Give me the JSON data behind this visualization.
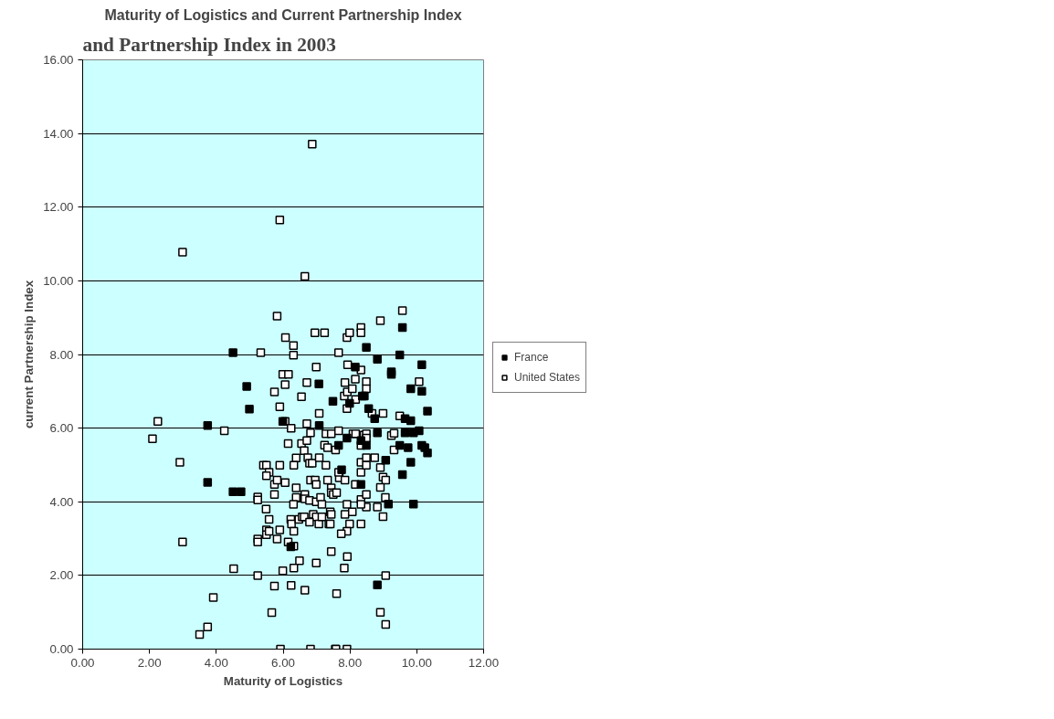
{
  "chart_data": {
    "type": "scatter",
    "title": "Maturity of Logistics and Current Partnership Index",
    "xlabel": "Maturity of Logistics",
    "ylabel": "current Partnership Index",
    "annotations": [
      "and Partnership Index in 2003"
    ],
    "xlim": [
      0,
      12
    ],
    "xticks": [
      {
        "value": 0,
        "label": "0.00"
      },
      {
        "value": 2,
        "label": "2.00"
      },
      {
        "value": 4,
        "label": "4.00"
      },
      {
        "value": 6,
        "label": "6.00"
      },
      {
        "value": 8,
        "label": "8.00"
      },
      {
        "value": 10,
        "label": "10.00"
      },
      {
        "value": 12,
        "label": "12.00"
      }
    ],
    "ylim": [
      0,
      16
    ],
    "yticks": [
      {
        "value": 0,
        "label": "0.00"
      },
      {
        "value": 2,
        "label": "2.00"
      },
      {
        "value": 4,
        "label": "4.00"
      },
      {
        "value": 6,
        "label": "6.00"
      },
      {
        "value": 8,
        "label": "8.00"
      },
      {
        "value": 10,
        "label": "10.00"
      },
      {
        "value": 12,
        "label": "12.00"
      },
      {
        "value": 14,
        "label": "14.00"
      },
      {
        "value": 16,
        "label": "16.00"
      }
    ],
    "grid": "y",
    "legend": "right",
    "marker": "square",
    "series": [
      {
        "name": "France",
        "color": "#000000",
        "x": [
          4.5,
          4.91,
          4.99,
          3.74,
          3.74,
          4.5,
          4.74,
          8.49,
          7.07,
          7.49,
          7.99,
          8.37,
          8.43,
          8.56,
          5.99,
          7.08,
          7.91,
          8.33,
          8.49,
          7.66,
          7.75,
          8.33,
          6.23,
          8.16,
          9.57,
          9.49,
          8.82,
          10.15,
          9.24,
          9.24,
          9.82,
          10.15,
          8.74,
          9.65,
          9.82,
          10.32,
          8.82,
          9.65,
          9.9,
          10.07,
          9.49,
          9.74,
          10.15,
          10.24,
          10.32,
          9.07,
          9.82,
          9.57,
          9.15,
          9.9,
          8.82
        ],
        "values": [
          8.05,
          7.13,
          6.52,
          6.07,
          4.53,
          4.27,
          4.27,
          8.19,
          7.2,
          6.73,
          6.67,
          6.87,
          6.87,
          6.53,
          6.18,
          6.07,
          5.73,
          5.66,
          5.53,
          5.53,
          4.87,
          4.47,
          2.78,
          7.66,
          8.73,
          7.99,
          7.87,
          7.72,
          7.53,
          7.46,
          7.07,
          7.0,
          6.26,
          6.26,
          6.2,
          6.46,
          5.87,
          5.87,
          5.87,
          5.93,
          5.53,
          5.47,
          5.53,
          5.47,
          5.33,
          5.13,
          5.07,
          4.74,
          3.94,
          3.94,
          1.74
        ]
      },
      {
        "name": "United States",
        "color": "#ffffff",
        "x": [
          2.99,
          5.33,
          2.25,
          4.24,
          2.09,
          2.91,
          5.24,
          5.24,
          2.99,
          5.24,
          5.24,
          4.52,
          5.24,
          3.91,
          3.74,
          3.5,
          6.87,
          5.9,
          6.65,
          5.82,
          6.07,
          6.31,
          6.31,
          6.95,
          7.24,
          7.66,
          7.91,
          7.99,
          8.33,
          8.33,
          6.99,
          7.93,
          8.33,
          5.99,
          6.16,
          6.06,
          6.71,
          7.85,
          8.16,
          8.49,
          5.74,
          6.55,
          7.83,
          7.92,
          8.07,
          8.17,
          8.49,
          5.9,
          7.91,
          7.08,
          6.06,
          6.24,
          6.71,
          6.82,
          7.28,
          7.44,
          7.66,
          8.09,
          8.17,
          8.42,
          8.49,
          8.49,
          8.33,
          6.15,
          6.55,
          6.71,
          6.63,
          7.24,
          7.33,
          7.57,
          6.39,
          6.74,
          6.79,
          6.87,
          7.08,
          7.28,
          6.32,
          5.9,
          5.41,
          5.5,
          5.58,
          5.5,
          5.74,
          5.82,
          6.06,
          6.39,
          6.82,
          6.96,
          6.99,
          7.33,
          7.44,
          7.44,
          7.5,
          7.6,
          7.68,
          7.66,
          7.85,
          8.16,
          8.33,
          8.33,
          8.49,
          8.49,
          5.74,
          6.39,
          6.31,
          6.65,
          6.65,
          6.79,
          6.99,
          7.12,
          7.16,
          5.49,
          5.58,
          5.5,
          5.5,
          5.58,
          5.9,
          5.82,
          6.23,
          6.25,
          6.32,
          6.47,
          6.57,
          6.63,
          6.9,
          6.99,
          7.07,
          7.16,
          6.79,
          7.41,
          7.44,
          7.37,
          7.41,
          7.85,
          8.07,
          7.99,
          7.91,
          7.74,
          8.33,
          8.49,
          8.33,
          8.33,
          8.49,
          7.91,
          6.15,
          6.32,
          6.49,
          6.99,
          7.44,
          7.92,
          7.83,
          6.32,
          5.99,
          5.74,
          6.24,
          6.65,
          7.6,
          5.66,
          5.92,
          6.82,
          7.56,
          7.58,
          7.91,
          9.57,
          8.91,
          10.07,
          8.66,
          8.99,
          9.49,
          9.24,
          9.32,
          8.74,
          9.32,
          8.91,
          8.99,
          9.07,
          8.91,
          9.06,
          8.82,
          8.99,
          9.07,
          8.91,
          9.07
        ],
        "values": [
          10.78,
          8.05,
          6.18,
          5.93,
          5.71,
          5.07,
          4.13,
          4.05,
          2.91,
          2.99,
          2.91,
          2.18,
          2.0,
          1.4,
          0.6,
          0.4,
          13.71,
          11.65,
          10.12,
          9.04,
          8.46,
          8.24,
          7.98,
          8.59,
          8.59,
          8.05,
          8.46,
          8.59,
          8.73,
          8.59,
          7.66,
          7.72,
          7.58,
          7.46,
          7.46,
          7.18,
          7.24,
          7.24,
          7.33,
          7.26,
          6.98,
          6.85,
          6.87,
          6.98,
          7.07,
          6.78,
          7.07,
          6.58,
          6.53,
          6.4,
          6.18,
          6.0,
          6.12,
          5.87,
          5.85,
          5.85,
          5.93,
          5.85,
          5.85,
          5.81,
          5.85,
          5.73,
          5.53,
          5.58,
          5.58,
          5.66,
          5.39,
          5.54,
          5.47,
          5.41,
          5.19,
          5.2,
          5.05,
          5.05,
          5.2,
          4.99,
          4.99,
          4.99,
          4.99,
          4.99,
          4.8,
          4.71,
          4.47,
          4.59,
          4.52,
          4.38,
          4.59,
          4.59,
          4.47,
          4.59,
          4.38,
          4.25,
          4.2,
          4.25,
          4.65,
          4.8,
          4.59,
          4.47,
          5.07,
          4.8,
          5.2,
          4.99,
          4.2,
          4.12,
          3.93,
          4.2,
          4.08,
          4.04,
          4.0,
          4.12,
          3.93,
          3.8,
          3.52,
          3.24,
          3.11,
          3.2,
          3.24,
          2.99,
          3.52,
          3.4,
          3.2,
          3.52,
          3.59,
          3.59,
          3.66,
          3.59,
          3.4,
          3.59,
          3.45,
          3.73,
          3.66,
          3.4,
          3.4,
          3.66,
          3.73,
          3.4,
          3.2,
          3.13,
          3.4,
          3.86,
          4.06,
          3.93,
          4.2,
          3.93,
          2.91,
          2.8,
          2.4,
          2.34,
          2.65,
          2.51,
          2.2,
          2.2,
          2.13,
          1.71,
          1.73,
          1.6,
          1.51,
          0.99,
          0.0,
          0.0,
          0.0,
          0.0,
          0.0,
          9.19,
          8.92,
          7.26,
          6.4,
          6.4,
          6.33,
          5.8,
          5.86,
          5.2,
          5.41,
          4.93,
          4.67,
          4.59,
          4.39,
          4.12,
          3.86,
          3.6,
          2.0,
          1.0,
          0.67
        ]
      }
    ]
  }
}
